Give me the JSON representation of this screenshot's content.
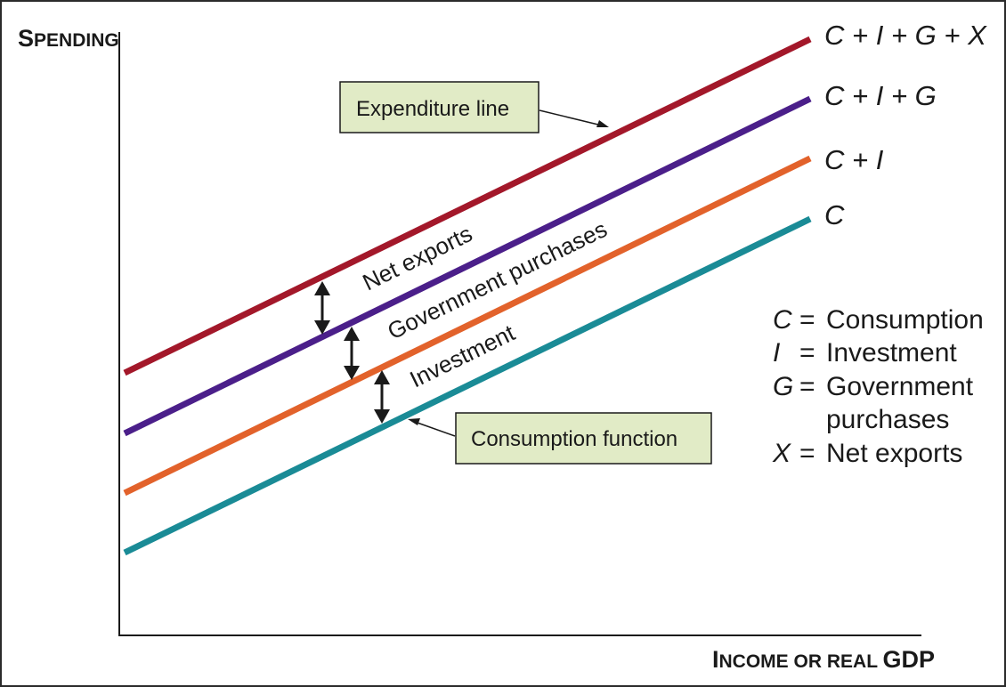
{
  "axes": {
    "y_label_cap": "S",
    "y_label_rest": "PENDING",
    "x_label_cap1": "I",
    "x_label_rest1": "NCOME OR REAL ",
    "x_label_gdp": "GDP"
  },
  "lines": [
    {
      "id": "cigx",
      "label": "C + I + G + X",
      "color": "#a3182a"
    },
    {
      "id": "cig",
      "label": "C + I + G",
      "color": "#4b1f8a"
    },
    {
      "id": "ci",
      "label": "C + I",
      "color": "#e2622b"
    },
    {
      "id": "c",
      "label": "C",
      "color": "#1a8b96"
    }
  ],
  "bands": {
    "net_exports": "Net exports",
    "government": "Government purchases",
    "investment": "Investment"
  },
  "callouts": {
    "expenditure": "Expenditure line",
    "consumption": "Consumption function",
    "box_fill": "#e1ebc6"
  },
  "legend": [
    {
      "symbol": "C",
      "eq": "=",
      "text": "Consumption",
      "text2": ""
    },
    {
      "symbol": "I",
      "eq": "=",
      "text": "Investment",
      "text2": ""
    },
    {
      "symbol": "G",
      "eq": "=",
      "text": "Government",
      "text2": "purchases"
    },
    {
      "symbol": "X",
      "eq": "=",
      "text": "Net exports",
      "text2": ""
    }
  ]
}
